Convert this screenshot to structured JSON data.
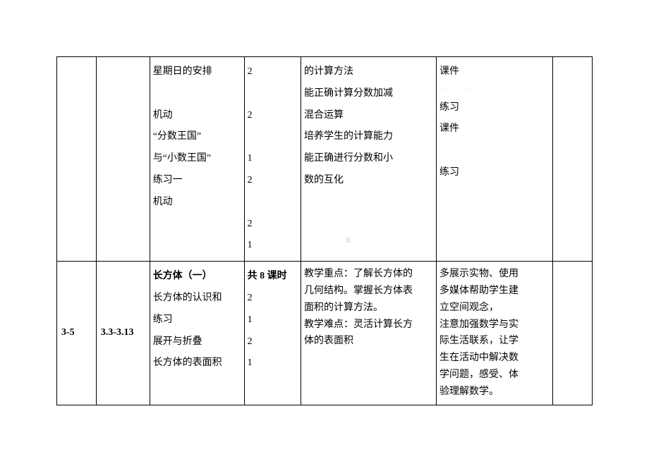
{
  "row1": {
    "content": {
      "l1": "星期日的安排",
      "l2": "机动",
      "l3": "“分数王国”",
      "l4": "与“小数王国”",
      "l5": "练习一",
      "l6": "机动"
    },
    "hours": {
      "h1": "2",
      "h2": "2",
      "h3": "1",
      "h4": "2",
      "h5": "2",
      "h6": "1"
    },
    "goals": {
      "g1": "的计算方法",
      "g2": "能正确计算分数加减",
      "g3": "混合运算",
      "g4": "培养学生的计算能力",
      "g5": "能正确进行分数和小",
      "g6": "数的互化",
      "wm": "····  第   ··"
    },
    "resource": {
      "r1": "课件",
      "wm1": "····  · ··",
      "r2": "练习",
      "r3": "课件",
      "r4": "练习"
    }
  },
  "row2": {
    "week": "3-5",
    "date": "3.3-3.13",
    "content": {
      "title": "长方体（一）",
      "l1": "长方体的认识和",
      "l2": "练习",
      "l3": "展开与折叠",
      "l4": "长方体的表面积"
    },
    "hours": {
      "title": "共 8 课时",
      "h1": "2",
      "h2": "1",
      "h3": "2",
      "h4": "1"
    },
    "goals": {
      "g1": "教学重点：了解长方体的",
      "g2": "几何结构。掌握长方体表",
      "g3": "面积的计算方法。",
      "g4": "教学难点：灵活计算长方",
      "g5": "体的表面积"
    },
    "resource": {
      "r1": "多展示实物、使用",
      "r2": "多媒体帮助学生建",
      "r3": "立空间观念，",
      "r4": "注意加强数学与实",
      "r5": "际生活联系，让学",
      "r6": "生在活动中解决数",
      "r7": "学问题，感受、体",
      "r8": "验理解数学。"
    }
  }
}
